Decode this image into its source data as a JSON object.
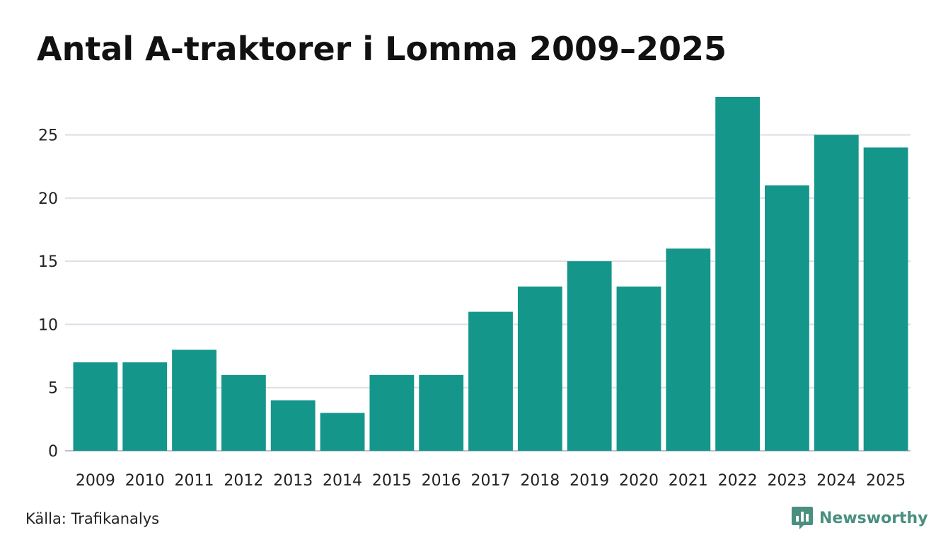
{
  "title": "Antal A-traktorer i Lomma 2009–2025",
  "source": "Källa: Trafikanalys",
  "brand": {
    "name": "Newsworthy",
    "icon": "newsworthy-logo-icon"
  },
  "colors": {
    "bar": "#14968a",
    "grid": "#dedee6",
    "axis": "#bfbfc8",
    "brand": "#4a8f7f"
  },
  "chart_data": {
    "type": "bar",
    "title": "Antal A-traktorer i Lomma 2009–2025",
    "xlabel": "",
    "ylabel": "",
    "categories": [
      "2009",
      "2010",
      "2011",
      "2012",
      "2013",
      "2014",
      "2015",
      "2016",
      "2017",
      "2018",
      "2019",
      "2020",
      "2021",
      "2022",
      "2023",
      "2024",
      "2025"
    ],
    "values": [
      7,
      7,
      8,
      6,
      4,
      3,
      6,
      6,
      11,
      13,
      15,
      13,
      16,
      28,
      21,
      25,
      24
    ],
    "yticks": [
      0,
      5,
      10,
      15,
      20,
      25
    ],
    "ylim": [
      0,
      28
    ],
    "grid": true,
    "legend": "none"
  }
}
